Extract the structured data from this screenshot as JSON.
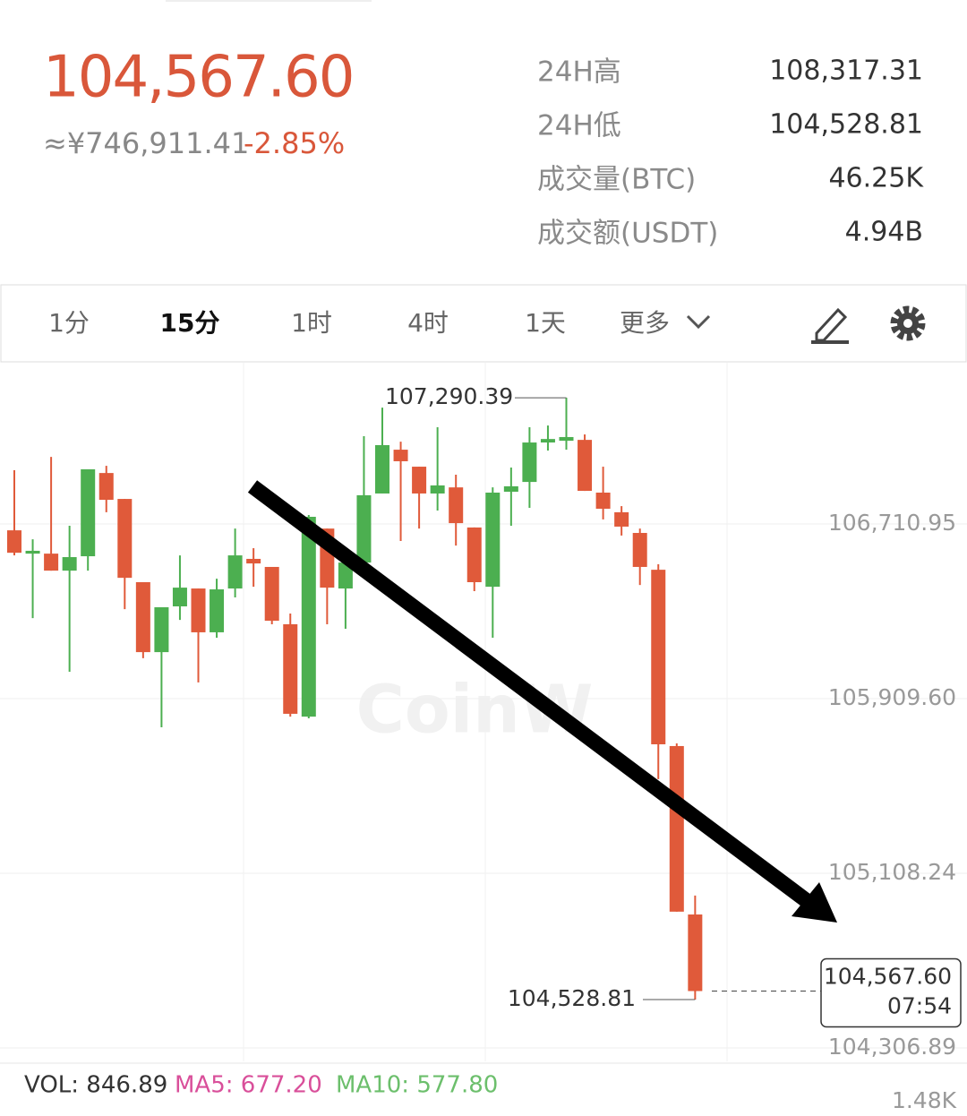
{
  "header": {
    "price": "104,567.60",
    "cny": "≈¥746,911.41",
    "change": "-2.85%",
    "stats": [
      {
        "label": "24H高",
        "value": "108,317.31"
      },
      {
        "label": "24H低",
        "value": "104,528.81"
      },
      {
        "label": "成交量(BTC)",
        "value": "46.25K"
      },
      {
        "label": "成交额(USDT)",
        "value": "4.94B"
      }
    ]
  },
  "tabs": {
    "items": [
      "1分",
      "15分",
      "1时",
      "4时",
      "1天",
      "更多"
    ],
    "active": 1
  },
  "chart_data": {
    "type": "candlestick",
    "watermark": "CoinW",
    "open": [
      106682,
      106575,
      106575,
      106497,
      106563,
      106945,
      106826,
      106444,
      106123,
      106333,
      106415,
      106214,
      106415,
      106551,
      106514,
      106251,
      105827,
      106690,
      106415,
      106534,
      106851,
      107052,
      106974,
      106851,
      106879,
      106695,
      106423,
      106859,
      106904,
      107085,
      107093,
      107097,
      106855,
      106765,
      106670,
      106501,
      105692,
      104919
    ],
    "high": [
      106958,
      106641,
      107019,
      106703,
      106962,
      106978,
      106826,
      106444,
      106329,
      106567,
      106415,
      106460,
      106690,
      106600,
      106514,
      106300,
      106752,
      106690,
      106588,
      107114,
      107245,
      107089,
      106974,
      107155,
      106937,
      106695,
      106879,
      106970,
      107155,
      107163,
      107290.39,
      107122,
      106974,
      106793,
      106690,
      106526,
      105704,
      105006
    ],
    "low": [
      106567,
      106279,
      106497,
      106033,
      106497,
      106765,
      106320,
      106095,
      105778,
      106271,
      105984,
      106189,
      106374,
      106423,
      106251,
      105827,
      105819,
      106251,
      106230,
      106534,
      106851,
      106633,
      106690,
      106773,
      106612,
      106403,
      106189,
      106703,
      106785,
      107048,
      107052,
      106863,
      106732,
      106658,
      106431,
      105540,
      104932,
      104528.81
    ],
    "close": [
      106579,
      106588,
      106497,
      106559,
      106962,
      106822,
      106464,
      106123,
      106329,
      106419,
      106214,
      106411,
      106567,
      106530,
      106267,
      105840,
      106744,
      106419,
      106534,
      106843,
      107073,
      106999,
      106851,
      106888,
      106715,
      106444,
      106855,
      106884,
      107085,
      107101,
      107110,
      106863,
      106781,
      106699,
      106514,
      105700,
      104932,
      104567.6
    ],
    "up_color": "#4caf50",
    "down_color": "#e05a3a",
    "ylim": [
      104245,
      107451
    ],
    "yticks": [
      {
        "value": 106710.95,
        "label": "106,710.95"
      },
      {
        "value": 105909.6,
        "label": "105,909.60"
      },
      {
        "value": 105108.24,
        "label": "105,108.24"
      },
      {
        "value": 104306.89,
        "label": "104,306.89"
      }
    ],
    "grid": true,
    "high_label": "107,290.39",
    "low_label": "104,528.81",
    "last_label": "104,567.60",
    "last_time": "07:54"
  },
  "volume": {
    "vol": "VOL: 846.89",
    "ma5": "MA5: 677.20",
    "ma10": "MA10: 577.80",
    "axis": "1.48K"
  }
}
